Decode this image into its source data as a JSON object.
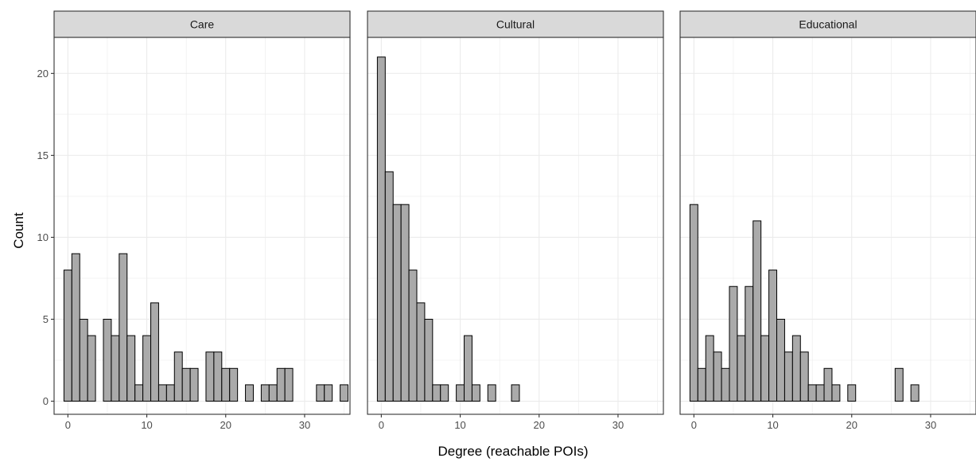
{
  "chart_data": {
    "type": "bar",
    "subtype": "faceted-histogram",
    "xlabel": "Degree (reachable POIs)",
    "ylabel": "Count",
    "xlim": [
      -1.75,
      35.75
    ],
    "ylim": [
      -0.8,
      22.2
    ],
    "x_ticks": [
      0,
      10,
      20,
      30
    ],
    "y_ticks": [
      0,
      5,
      10,
      15,
      20
    ],
    "grid": true,
    "legend": "none",
    "colors": {
      "bar_fill": "#aaaaaa",
      "bar_stroke": "#000000",
      "strip_fill": "#d9d9d9",
      "grid": "#ebebeb"
    },
    "facets": [
      {
        "label": "Care",
        "x": [
          0,
          1,
          2,
          3,
          4,
          5,
          6,
          7,
          8,
          9,
          10,
          11,
          12,
          13,
          14,
          15,
          16,
          17,
          18,
          19,
          20,
          21,
          22,
          23,
          24,
          25,
          26,
          27,
          28,
          29,
          30,
          31,
          32,
          33,
          34,
          35
        ],
        "values": [
          8,
          9,
          5,
          4,
          0,
          5,
          4,
          9,
          4,
          1,
          4,
          6,
          1,
          1,
          3,
          2,
          2,
          0,
          3,
          3,
          2,
          2,
          0,
          1,
          0,
          1,
          1,
          2,
          2,
          0,
          0,
          0,
          1,
          1,
          0,
          1
        ]
      },
      {
        "label": "Cultural",
        "x": [
          0,
          1,
          2,
          3,
          4,
          5,
          6,
          7,
          8,
          9,
          10,
          11,
          12,
          13,
          14,
          15,
          16,
          17,
          18,
          19,
          20,
          21,
          22,
          23,
          24,
          25,
          26,
          27,
          28,
          29,
          30,
          31,
          32,
          33,
          34,
          35
        ],
        "values": [
          21,
          14,
          12,
          12,
          8,
          6,
          5,
          1,
          1,
          0,
          1,
          4,
          1,
          0,
          1,
          0,
          0,
          1,
          0,
          0,
          0,
          0,
          0,
          0,
          0,
          0,
          0,
          0,
          0,
          0,
          0,
          0,
          0,
          0,
          0,
          0
        ]
      },
      {
        "label": "Educational",
        "x": [
          0,
          1,
          2,
          3,
          4,
          5,
          6,
          7,
          8,
          9,
          10,
          11,
          12,
          13,
          14,
          15,
          16,
          17,
          18,
          19,
          20,
          21,
          22,
          23,
          24,
          25,
          26,
          27,
          28,
          29,
          30,
          31,
          32,
          33,
          34,
          35
        ],
        "values": [
          12,
          2,
          4,
          3,
          2,
          7,
          4,
          7,
          11,
          4,
          8,
          5,
          3,
          4,
          3,
          1,
          1,
          2,
          1,
          0,
          1,
          0,
          0,
          0,
          0,
          0,
          2,
          0,
          1,
          0,
          0,
          0,
          0,
          0,
          0,
          0
        ]
      }
    ]
  }
}
